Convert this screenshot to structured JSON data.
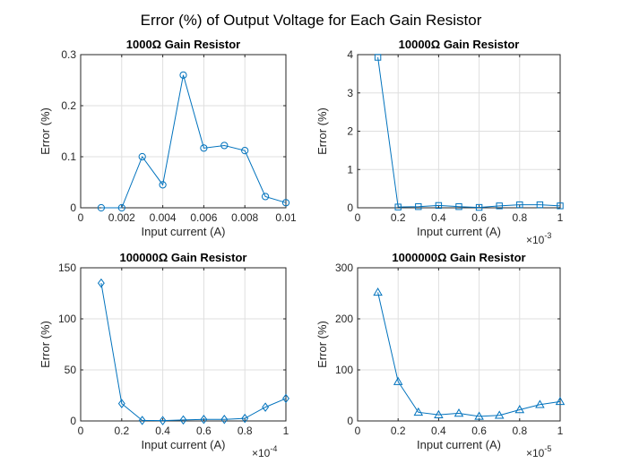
{
  "title": "Error (%) of Output Voltage for Each Gain Resistor",
  "colors": {
    "series": "#0072BD",
    "grid": "#dfdfdf",
    "axis": "#262626"
  },
  "chart_data": [
    {
      "type": "line",
      "title": "1000Ω Gain Resistor",
      "xlabel": "Input current (A)",
      "ylabel": "Error (%)",
      "marker": "circle",
      "grid": true,
      "xlim": [
        0,
        0.01
      ],
      "ylim": [
        0,
        0.3
      ],
      "xticks": [
        0,
        0.002,
        0.004,
        0.006,
        0.008,
        0.01
      ],
      "xtick_labels": [
        "0",
        "0.002",
        "0.004",
        "0.006",
        "0.008",
        "0.01"
      ],
      "yticks": [
        0,
        0.1,
        0.2,
        0.3
      ],
      "ytick_labels": [
        "0",
        "0.1",
        "0.2",
        "0.3"
      ],
      "x_multiplier": "",
      "x": [
        0.001,
        0.002,
        0.003,
        0.004,
        0.005,
        0.006,
        0.007,
        0.008,
        0.009,
        0.01
      ],
      "y": [
        0.0,
        0.0,
        0.1,
        0.045,
        0.26,
        0.117,
        0.122,
        0.112,
        0.022,
        0.01
      ]
    },
    {
      "type": "line",
      "title": "10000Ω Gain Resistor",
      "xlabel": "Input current (A)",
      "ylabel": "Error (%)",
      "marker": "square",
      "grid": true,
      "xlim": [
        0,
        0.001
      ],
      "ylim": [
        0,
        4
      ],
      "xticks": [
        0,
        0.0002,
        0.0004,
        0.0006,
        0.0008,
        0.001
      ],
      "xtick_labels": [
        "0",
        "0.2",
        "0.4",
        "0.6",
        "0.8",
        "1"
      ],
      "yticks": [
        0,
        1,
        2,
        3,
        4
      ],
      "ytick_labels": [
        "0",
        "1",
        "2",
        "3",
        "4"
      ],
      "x_multiplier": "×10",
      "x_multiplier_exp": "-3",
      "x": [
        0.0001,
        0.0002,
        0.0003,
        0.0004,
        0.0005,
        0.0006,
        0.0007,
        0.0008,
        0.0009,
        0.001
      ],
      "y": [
        3.93,
        0.02,
        0.03,
        0.06,
        0.03,
        0.01,
        0.05,
        0.08,
        0.08,
        0.05
      ]
    },
    {
      "type": "line",
      "title": "100000Ω Gain Resistor",
      "xlabel": "Input current (A)",
      "ylabel": "Error (%)",
      "marker": "diamond",
      "grid": true,
      "xlim": [
        0,
        0.0001
      ],
      "ylim": [
        0,
        150
      ],
      "xticks": [
        0,
        2e-05,
        4e-05,
        6e-05,
        8e-05,
        0.0001
      ],
      "xtick_labels": [
        "0",
        "0.2",
        "0.4",
        "0.6",
        "0.8",
        "1"
      ],
      "yticks": [
        0,
        50,
        100,
        150
      ],
      "ytick_labels": [
        "0",
        "50",
        "100",
        "150"
      ],
      "x_multiplier": "×10",
      "x_multiplier_exp": "-4",
      "x": [
        1e-05,
        2e-05,
        3e-05,
        4e-05,
        5e-05,
        6e-05,
        7e-05,
        8e-05,
        9e-05,
        0.0001
      ],
      "y": [
        135,
        17,
        0.5,
        0.3,
        1,
        1.5,
        1.5,
        2.5,
        13.5,
        22
      ]
    },
    {
      "type": "line",
      "title": "1000000Ω Gain Resistor",
      "xlabel": "Input current (A)",
      "ylabel": "Error (%)",
      "marker": "triangle",
      "grid": true,
      "xlim": [
        0,
        1e-05
      ],
      "ylim": [
        0,
        300
      ],
      "xticks": [
        0,
        2e-06,
        4e-06,
        6e-06,
        8e-06,
        1e-05
      ],
      "xtick_labels": [
        "0",
        "0.2",
        "0.4",
        "0.6",
        "0.8",
        "1"
      ],
      "yticks": [
        0,
        100,
        200,
        300
      ],
      "ytick_labels": [
        "0",
        "100",
        "200",
        "300"
      ],
      "x_multiplier": "×10",
      "x_multiplier_exp": "-5",
      "x": [
        1e-06,
        2e-06,
        3e-06,
        4e-06,
        5e-06,
        6e-06,
        7e-06,
        8e-06,
        9e-06,
        1e-05
      ],
      "y": [
        252,
        77,
        17,
        12,
        15,
        9,
        11,
        22,
        32,
        38
      ]
    }
  ]
}
